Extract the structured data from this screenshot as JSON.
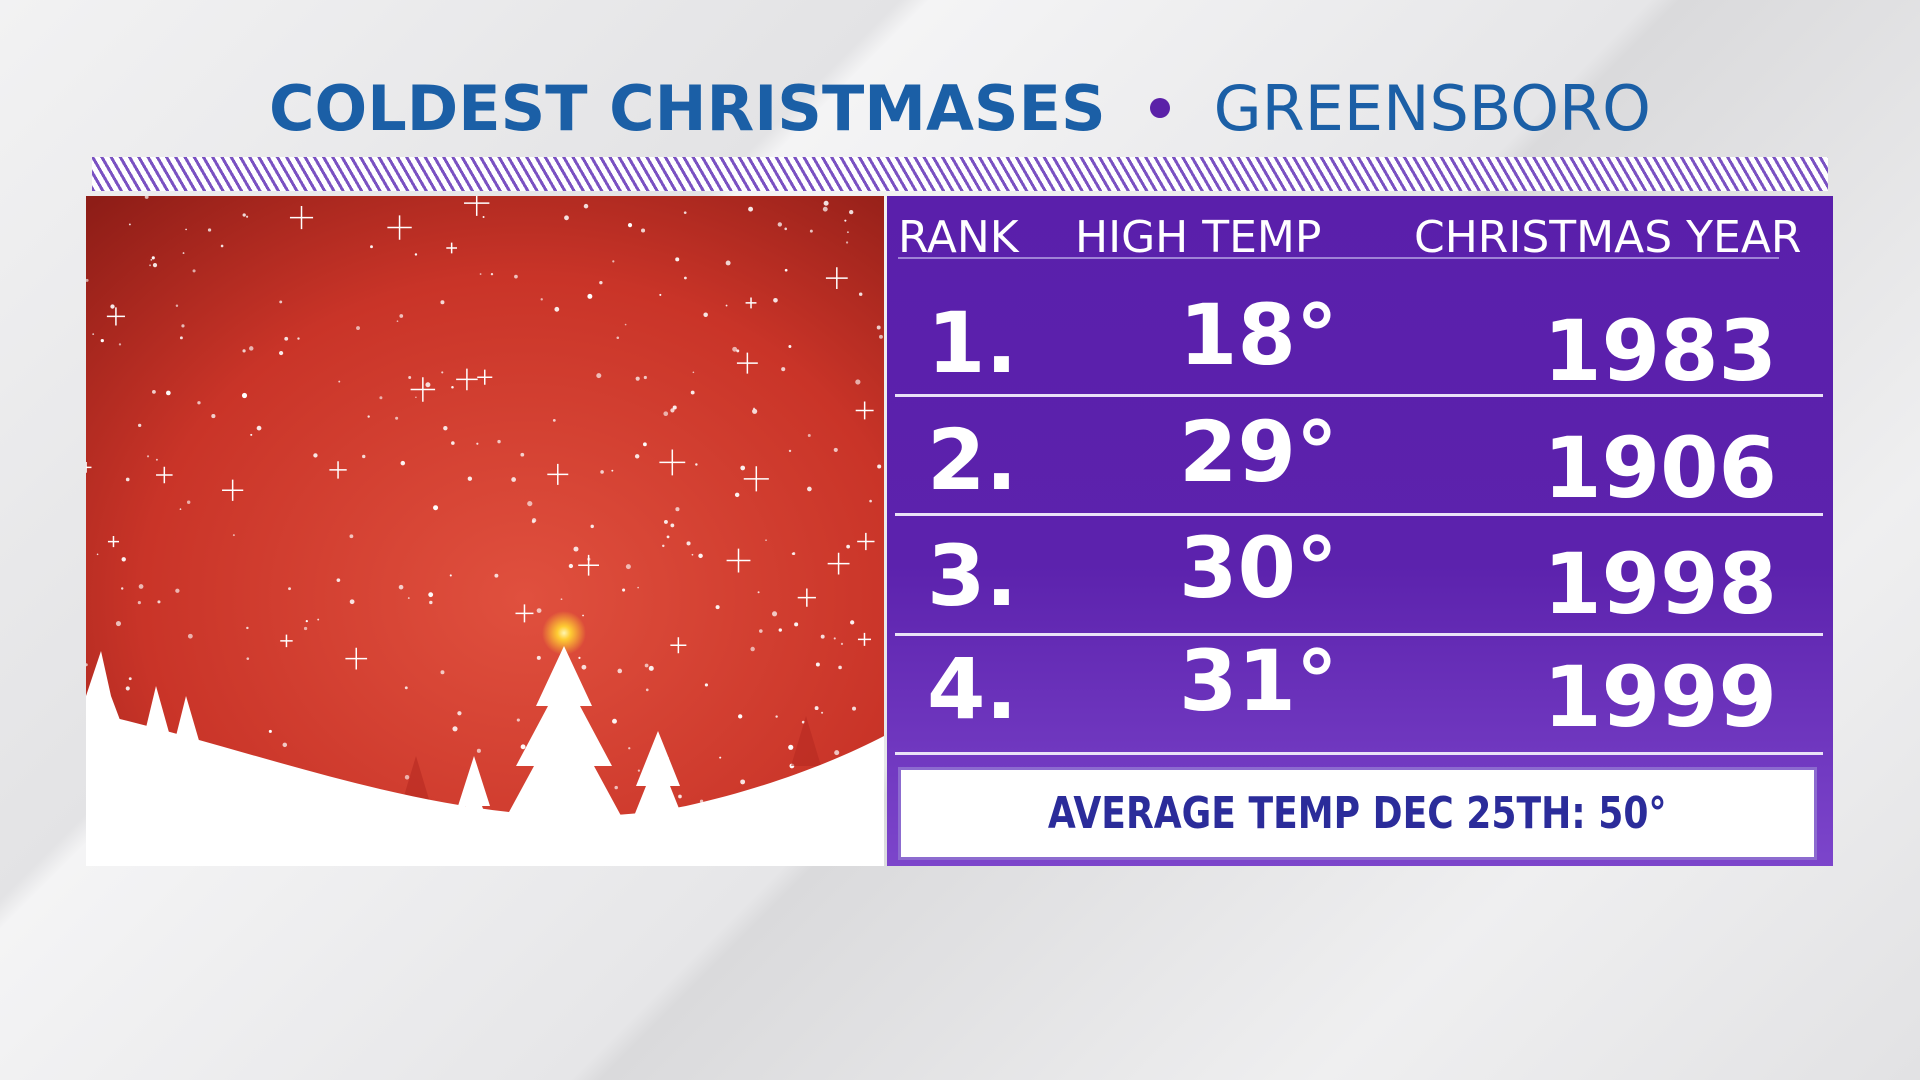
{
  "header": {
    "title": "COLDEST CHRISTMASES",
    "location": "GREENSBORO"
  },
  "table": {
    "columns": [
      "RANK",
      "HIGH TEMP",
      "CHRISTMAS YEAR"
    ],
    "rows": [
      [
        "1.",
        "18°",
        "1983"
      ],
      [
        "2.",
        "29°",
        "1906"
      ],
      [
        "3.",
        "30°",
        "1998"
      ],
      [
        "4.",
        "31°",
        "1999"
      ]
    ]
  },
  "footer": "AVERAGE TEMP DEC 25TH: 50°"
}
